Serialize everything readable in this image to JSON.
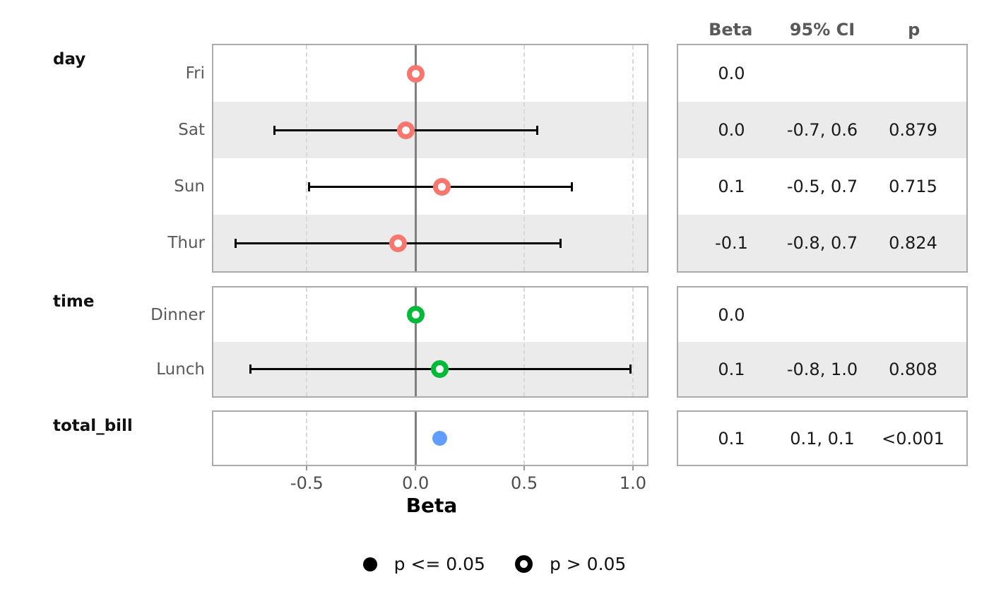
{
  "colors": {
    "day": "#F8766D",
    "time": "#00BA38",
    "total_bill": "#619CFF",
    "stripe": "#ebebeb",
    "panel_border": "#ababab",
    "zero_line": "#808080",
    "gridline": "#d9d9d9",
    "ci": "#000000",
    "legend_marker": "#000000",
    "text_dark": "#1a1a1a",
    "text_gray": "#595959"
  },
  "chart_data": {
    "type": "forest",
    "xlabel": "Beta",
    "xlim": [
      -0.93,
      1.065
    ],
    "zero_line": 0,
    "gridlines": [
      -0.5,
      0.5,
      1.0
    ],
    "xticks": [
      {
        "value": -0.5,
        "label": "-0.5"
      },
      {
        "value": 0.0,
        "label": "0.0"
      },
      {
        "value": 0.5,
        "label": "0.5"
      },
      {
        "value": 1.0,
        "label": "1.0"
      }
    ],
    "table_header": {
      "beta": "Beta",
      "ci": "95% CI",
      "p": "p"
    },
    "legend": [
      {
        "marker": "filled",
        "label": "p <= 0.05"
      },
      {
        "marker": "open",
        "label": "p > 0.05"
      }
    ],
    "groups": [
      {
        "name": "day",
        "color": "#F8766D",
        "rows": [
          {
            "label": "Fri",
            "beta": 0.0,
            "beta_plot": 0.0,
            "ci_plot": null,
            "marker": "open",
            "striped": false,
            "beta_text": "0.0",
            "ci_text": "",
            "p_text": ""
          },
          {
            "label": "Sat",
            "beta": 0.0,
            "beta_plot": -0.045,
            "ci_plot": [
              -0.65,
              0.56
            ],
            "marker": "open",
            "striped": true,
            "beta_text": "0.0",
            "ci_text": "-0.7, 0.6",
            "p_text": "0.879"
          },
          {
            "label": "Sun",
            "beta": 0.1,
            "beta_plot": 0.12,
            "ci_plot": [
              -0.49,
              0.72
            ],
            "marker": "open",
            "striped": false,
            "beta_text": "0.1",
            "ci_text": "-0.5, 0.7",
            "p_text": "0.715"
          },
          {
            "label": "Thur",
            "beta": -0.1,
            "beta_plot": -0.08,
            "ci_plot": [
              -0.83,
              0.67
            ],
            "marker": "open",
            "striped": true,
            "beta_text": "-0.1",
            "ci_text": "-0.8, 0.7",
            "p_text": "0.824"
          }
        ]
      },
      {
        "name": "time",
        "color": "#00BA38",
        "rows": [
          {
            "label": "Dinner",
            "beta": 0.0,
            "beta_plot": 0.0,
            "ci_plot": null,
            "marker": "open",
            "striped": false,
            "beta_text": "0.0",
            "ci_text": "",
            "p_text": ""
          },
          {
            "label": "Lunch",
            "beta": 0.1,
            "beta_plot": 0.11,
            "ci_plot": [
              -0.76,
              0.99
            ],
            "marker": "open",
            "striped": true,
            "beta_text": "0.1",
            "ci_text": "-0.8, 1.0",
            "p_text": "0.808"
          }
        ]
      },
      {
        "name": "total_bill",
        "color": "#619CFF",
        "rows": [
          {
            "label": "",
            "beta": 0.1,
            "beta_plot": 0.11,
            "ci_plot": null,
            "marker": "filled",
            "striped": false,
            "beta_text": "0.1",
            "ci_text": "0.1, 0.1",
            "p_text": "<0.001"
          }
        ]
      }
    ]
  }
}
